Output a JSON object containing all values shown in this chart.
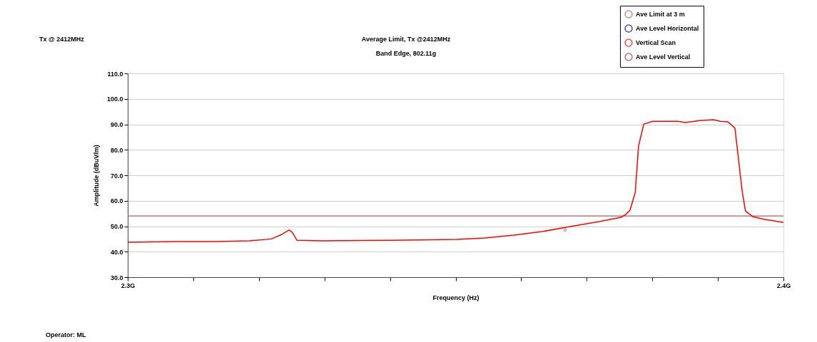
{
  "chart_data": {
    "type": "line",
    "title": "Average Limit, Tx @2412MHz",
    "subtitle": "Band Edge, 802.11g",
    "xlabel": "Frequency (Hz)",
    "ylabel": "Amplitude (dBuV/m)",
    "annotations": [
      "Tx @ 2412MHz",
      "Operator: ML"
    ],
    "xlim": [
      2.3,
      2.4
    ],
    "xticks": [
      {
        "value": 2.3,
        "label": "2.3G"
      },
      {
        "value": 2.31,
        "label": null
      },
      {
        "value": 2.32,
        "label": null
      },
      {
        "value": 2.33,
        "label": null
      },
      {
        "value": 2.34,
        "label": null
      },
      {
        "value": 2.35,
        "label": null
      },
      {
        "value": 2.36,
        "label": null
      },
      {
        "value": 2.37,
        "label": null
      },
      {
        "value": 2.38,
        "label": null
      },
      {
        "value": 2.39,
        "label": null
      },
      {
        "value": 2.4,
        "label": "2.4G"
      }
    ],
    "ylim": [
      30,
      110
    ],
    "yticks": [
      {
        "value": 30,
        "label": "30.0"
      },
      {
        "value": 40,
        "label": "40.0"
      },
      {
        "value": 50,
        "label": "50.0"
      },
      {
        "value": 60,
        "label": "60.0"
      },
      {
        "value": 70,
        "label": "70.0"
      },
      {
        "value": 80,
        "label": "80.0"
      },
      {
        "value": 90,
        "label": "90.0"
      },
      {
        "value": 100,
        "label": "100.0"
      },
      {
        "value": 110,
        "label": "110.0"
      }
    ],
    "grid": "y",
    "legend": "top right",
    "series": [
      {
        "name": "Ave Limit at 3 m",
        "marker": "none",
        "color": "#b06060",
        "x": [
          2.3,
          2.4
        ],
        "values": [
          54,
          54
        ]
      },
      {
        "name": "Ave Level Horizontal",
        "type": "scatter",
        "marker": "circle",
        "color": "#00008b"
      },
      {
        "name": "Vertical Scan",
        "marker": "none",
        "color": "#ff0000",
        "x": [
          2.3,
          2.3077,
          2.3132,
          2.3186,
          2.3219,
          2.3235,
          2.3246,
          2.3251,
          2.3258,
          2.3295,
          2.3404,
          2.3502,
          2.3545,
          2.3589,
          2.3632,
          2.3676,
          2.3719,
          2.3752,
          2.3758,
          2.3766,
          2.3774,
          2.3779,
          2.3787,
          2.3801,
          2.3839,
          2.385,
          2.3872,
          2.3893,
          2.3904,
          2.3915,
          2.3926,
          2.3931,
          2.3937,
          2.3942,
          2.3953,
          2.397,
          2.3986,
          2.4
        ],
        "values": [
          43.7,
          44,
          44,
          44.3,
          45,
          46.8,
          48.5,
          47.6,
          44.5,
          44.3,
          44.5,
          44.8,
          45.4,
          46.5,
          47.9,
          49.9,
          51.8,
          53.5,
          54.3,
          56.3,
          63.3,
          81.5,
          90.1,
          91.2,
          91.2,
          90.7,
          91.5,
          91.8,
          91.2,
          91,
          88.5,
          77.3,
          63.8,
          56,
          53.8,
          52.7,
          52.1,
          51.5
        ]
      },
      {
        "name": "Ave Level Vertical",
        "type": "scatter",
        "marker": "circle",
        "color": "#8b3a3a",
        "x": [
          2.3667
        ],
        "values": [
          48.5
        ]
      }
    ]
  }
}
